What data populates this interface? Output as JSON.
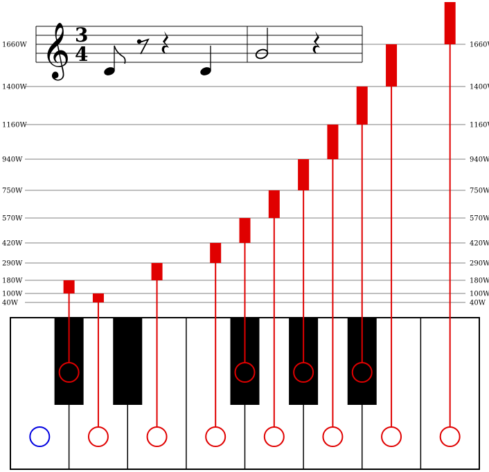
{
  "score": {
    "clef": "𝄞",
    "time_signature": {
      "top": "3",
      "bottom": "4"
    },
    "rests": {
      "eighth": "𝄾",
      "quarter": "𝄽"
    }
  },
  "wattage_scale": [
    {
      "value": 40,
      "label": "40W"
    },
    {
      "value": 100,
      "label": "100W"
    },
    {
      "value": 180,
      "label": "180W"
    },
    {
      "value": 290,
      "label": "290W"
    },
    {
      "value": 420,
      "label": "420W"
    },
    {
      "value": 570,
      "label": "570W"
    },
    {
      "value": 750,
      "label": "750W"
    },
    {
      "value": 940,
      "label": "940W"
    },
    {
      "value": 1160,
      "label": "1160W"
    },
    {
      "value": 1400,
      "label": "1400W"
    },
    {
      "value": 1660,
      "label": "1660W"
    }
  ],
  "keys": {
    "white_count": 8,
    "black_after_white": [
      0,
      1,
      3,
      4,
      5
    ],
    "active_white": 0,
    "stem_sequence": [
      {
        "key": "w1",
        "from": 40,
        "to": 100
      },
      {
        "key": "b1",
        "from": 100,
        "to": 180
      },
      {
        "key": "w2",
        "from": 180,
        "to": 290
      },
      {
        "key": "w3",
        "from": 290,
        "to": 420
      },
      {
        "key": "b3",
        "from": 420,
        "to": 570
      },
      {
        "key": "w4",
        "from": 570,
        "to": 750
      },
      {
        "key": "b4",
        "from": 750,
        "to": 940
      },
      {
        "key": "w5",
        "from": 940,
        "to": 1160
      },
      {
        "key": "b5",
        "from": 1160,
        "to": 1400
      },
      {
        "key": "w6",
        "from": 1400,
        "to": 1660
      },
      {
        "key": "w7",
        "from": 1660,
        "to": 1920
      }
    ]
  },
  "colors": {
    "stem": "#e00000",
    "active_key": "#0000e0",
    "black_key": "#000000",
    "grid": "#000000"
  }
}
